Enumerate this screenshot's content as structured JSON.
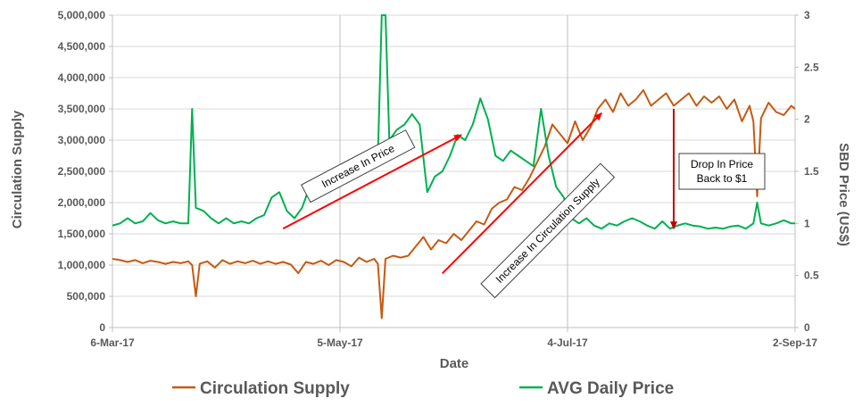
{
  "chart_data": {
    "type": "line",
    "xlabel": "Date",
    "ylabel_left": "Circulation Supply",
    "ylabel_right": "SBD Price (US$)",
    "ylim_left": [
      0,
      5000000
    ],
    "ylim_right": [
      0,
      3
    ],
    "yticks_left": [
      "0",
      "500,000",
      "1,000,000",
      "1,500,000",
      "2,000,000",
      "2,500,000",
      "3,000,000",
      "3,500,000",
      "4,000,000",
      "4,500,000",
      "5,000,000"
    ],
    "yticks_right": [
      "0",
      "0.5",
      "1",
      "1.5",
      "2",
      "2.5",
      "3"
    ],
    "xlim": [
      "2017-03-06",
      "2017-09-02"
    ],
    "xticks": [
      {
        "date": "2017-03-06",
        "label": "6-Mar-17"
      },
      {
        "date": "2017-05-05",
        "label": "5-May-17"
      },
      {
        "date": "2017-07-04",
        "label": "4-Jul-17"
      },
      {
        "date": "2017-09-02",
        "label": "2-Sep-17"
      }
    ],
    "grid": "horizontal",
    "legend": "bottom",
    "series": [
      {
        "name": "Circulation Supply",
        "axis": "left",
        "color": "#c55a11",
        "points": [
          [
            "2017-03-06",
            1100000
          ],
          [
            "2017-03-08",
            1080000
          ],
          [
            "2017-03-10",
            1050000
          ],
          [
            "2017-03-12",
            1080000
          ],
          [
            "2017-03-14",
            1030000
          ],
          [
            "2017-03-16",
            1070000
          ],
          [
            "2017-03-18",
            1050000
          ],
          [
            "2017-03-20",
            1020000
          ],
          [
            "2017-03-22",
            1050000
          ],
          [
            "2017-03-24",
            1030000
          ],
          [
            "2017-03-26",
            1060000
          ],
          [
            "2017-03-27",
            1000000
          ],
          [
            "2017-03-28",
            500000
          ],
          [
            "2017-03-29",
            1020000
          ],
          [
            "2017-03-31",
            1060000
          ],
          [
            "2017-04-02",
            960000
          ],
          [
            "2017-04-04",
            1080000
          ],
          [
            "2017-04-06",
            1020000
          ],
          [
            "2017-04-08",
            1060000
          ],
          [
            "2017-04-10",
            1030000
          ],
          [
            "2017-04-12",
            1070000
          ],
          [
            "2017-04-14",
            1020000
          ],
          [
            "2017-04-16",
            1060000
          ],
          [
            "2017-04-18",
            1020000
          ],
          [
            "2017-04-20",
            1050000
          ],
          [
            "2017-04-22",
            1010000
          ],
          [
            "2017-04-24",
            870000
          ],
          [
            "2017-04-26",
            1050000
          ],
          [
            "2017-04-28",
            1020000
          ],
          [
            "2017-04-30",
            1070000
          ],
          [
            "2017-05-02",
            1000000
          ],
          [
            "2017-05-04",
            1080000
          ],
          [
            "2017-05-06",
            1050000
          ],
          [
            "2017-05-08",
            980000
          ],
          [
            "2017-05-10",
            1120000
          ],
          [
            "2017-05-12",
            1050000
          ],
          [
            "2017-05-14",
            1100000
          ],
          [
            "2017-05-15",
            1020000
          ],
          [
            "2017-05-16",
            150000
          ],
          [
            "2017-05-17",
            1100000
          ],
          [
            "2017-05-19",
            1150000
          ],
          [
            "2017-05-21",
            1120000
          ],
          [
            "2017-05-23",
            1150000
          ],
          [
            "2017-05-25",
            1300000
          ],
          [
            "2017-05-27",
            1450000
          ],
          [
            "2017-05-29",
            1250000
          ],
          [
            "2017-05-31",
            1400000
          ],
          [
            "2017-06-02",
            1350000
          ],
          [
            "2017-06-04",
            1500000
          ],
          [
            "2017-06-06",
            1400000
          ],
          [
            "2017-06-08",
            1550000
          ],
          [
            "2017-06-10",
            1700000
          ],
          [
            "2017-06-12",
            1650000
          ],
          [
            "2017-06-14",
            1900000
          ],
          [
            "2017-06-16",
            2000000
          ],
          [
            "2017-06-18",
            2050000
          ],
          [
            "2017-06-20",
            2250000
          ],
          [
            "2017-06-22",
            2200000
          ],
          [
            "2017-06-24",
            2400000
          ],
          [
            "2017-06-26",
            2650000
          ],
          [
            "2017-06-28",
            2900000
          ],
          [
            "2017-06-30",
            3250000
          ],
          [
            "2017-07-02",
            3100000
          ],
          [
            "2017-07-04",
            2950000
          ],
          [
            "2017-07-06",
            3300000
          ],
          [
            "2017-07-08",
            3000000
          ],
          [
            "2017-07-10",
            3200000
          ],
          [
            "2017-07-12",
            3500000
          ],
          [
            "2017-07-14",
            3650000
          ],
          [
            "2017-07-16",
            3450000
          ],
          [
            "2017-07-18",
            3750000
          ],
          [
            "2017-07-20",
            3550000
          ],
          [
            "2017-07-22",
            3650000
          ],
          [
            "2017-07-24",
            3800000
          ],
          [
            "2017-07-26",
            3550000
          ],
          [
            "2017-07-28",
            3650000
          ],
          [
            "2017-07-30",
            3750000
          ],
          [
            "2017-08-01",
            3550000
          ],
          [
            "2017-08-03",
            3650000
          ],
          [
            "2017-08-05",
            3750000
          ],
          [
            "2017-08-07",
            3550000
          ],
          [
            "2017-08-09",
            3700000
          ],
          [
            "2017-08-11",
            3600000
          ],
          [
            "2017-08-13",
            3700000
          ],
          [
            "2017-08-15",
            3500000
          ],
          [
            "2017-08-17",
            3650000
          ],
          [
            "2017-08-19",
            3300000
          ],
          [
            "2017-08-21",
            3550000
          ],
          [
            "2017-08-22",
            3300000
          ],
          [
            "2017-08-23",
            2100000
          ],
          [
            "2017-08-24",
            3350000
          ],
          [
            "2017-08-26",
            3600000
          ],
          [
            "2017-08-28",
            3450000
          ],
          [
            "2017-08-30",
            3400000
          ],
          [
            "2017-09-01",
            3550000
          ],
          [
            "2017-09-02",
            3500000
          ]
        ]
      },
      {
        "name": "AVG Daily Price",
        "axis": "right",
        "color": "#00b050",
        "points": [
          [
            "2017-03-06",
            0.98
          ],
          [
            "2017-03-08",
            1.0
          ],
          [
            "2017-03-10",
            1.05
          ],
          [
            "2017-03-12",
            1.0
          ],
          [
            "2017-03-14",
            1.02
          ],
          [
            "2017-03-16",
            1.1
          ],
          [
            "2017-03-18",
            1.03
          ],
          [
            "2017-03-20",
            1.0
          ],
          [
            "2017-03-22",
            1.02
          ],
          [
            "2017-03-24",
            1.0
          ],
          [
            "2017-03-26",
            1.0
          ],
          [
            "2017-03-27",
            2.1
          ],
          [
            "2017-03-28",
            1.15
          ],
          [
            "2017-03-30",
            1.12
          ],
          [
            "2017-04-01",
            1.05
          ],
          [
            "2017-04-03",
            1.0
          ],
          [
            "2017-04-05",
            1.05
          ],
          [
            "2017-04-07",
            1.0
          ],
          [
            "2017-04-09",
            1.02
          ],
          [
            "2017-04-11",
            1.0
          ],
          [
            "2017-04-13",
            1.05
          ],
          [
            "2017-04-15",
            1.08
          ],
          [
            "2017-04-17",
            1.25
          ],
          [
            "2017-04-19",
            1.3
          ],
          [
            "2017-04-21",
            1.12
          ],
          [
            "2017-04-23",
            1.05
          ],
          [
            "2017-04-25",
            1.15
          ],
          [
            "2017-04-27",
            1.35
          ],
          [
            "2017-04-29",
            1.4
          ],
          [
            "2017-05-01",
            1.45
          ],
          [
            "2017-05-03",
            1.35
          ],
          [
            "2017-05-05",
            1.5
          ],
          [
            "2017-05-07",
            1.45
          ],
          [
            "2017-05-09",
            1.6
          ],
          [
            "2017-05-11",
            1.65
          ],
          [
            "2017-05-13",
            1.7
          ],
          [
            "2017-05-15",
            1.65
          ],
          [
            "2017-05-16",
            3.0
          ],
          [
            "2017-05-17",
            3.0
          ],
          [
            "2017-05-18",
            1.8
          ],
          [
            "2017-05-20",
            1.9
          ],
          [
            "2017-05-22",
            1.95
          ],
          [
            "2017-05-24",
            2.05
          ],
          [
            "2017-05-26",
            1.95
          ],
          [
            "2017-05-28",
            1.3
          ],
          [
            "2017-05-30",
            1.45
          ],
          [
            "2017-06-01",
            1.5
          ],
          [
            "2017-06-03",
            1.65
          ],
          [
            "2017-06-05",
            1.85
          ],
          [
            "2017-06-07",
            1.8
          ],
          [
            "2017-06-09",
            1.95
          ],
          [
            "2017-06-11",
            2.2
          ],
          [
            "2017-06-13",
            2.0
          ],
          [
            "2017-06-15",
            1.65
          ],
          [
            "2017-06-17",
            1.6
          ],
          [
            "2017-06-19",
            1.7
          ],
          [
            "2017-06-21",
            1.65
          ],
          [
            "2017-06-23",
            1.6
          ],
          [
            "2017-06-25",
            1.55
          ],
          [
            "2017-06-27",
            2.1
          ],
          [
            "2017-06-29",
            1.65
          ],
          [
            "2017-07-01",
            1.35
          ],
          [
            "2017-07-03",
            1.25
          ],
          [
            "2017-07-05",
            1.05
          ],
          [
            "2017-07-07",
            1.0
          ],
          [
            "2017-07-09",
            1.05
          ],
          [
            "2017-07-11",
            0.98
          ],
          [
            "2017-07-13",
            0.95
          ],
          [
            "2017-07-15",
            1.0
          ],
          [
            "2017-07-17",
            0.98
          ],
          [
            "2017-07-19",
            1.02
          ],
          [
            "2017-07-21",
            1.05
          ],
          [
            "2017-07-23",
            1.02
          ],
          [
            "2017-07-25",
            0.98
          ],
          [
            "2017-07-27",
            0.95
          ],
          [
            "2017-07-29",
            1.02
          ],
          [
            "2017-07-31",
            0.95
          ],
          [
            "2017-08-02",
            0.98
          ],
          [
            "2017-08-04",
            1.0
          ],
          [
            "2017-08-06",
            0.98
          ],
          [
            "2017-08-08",
            0.97
          ],
          [
            "2017-08-10",
            0.95
          ],
          [
            "2017-08-12",
            0.96
          ],
          [
            "2017-08-14",
            0.95
          ],
          [
            "2017-08-16",
            0.97
          ],
          [
            "2017-08-18",
            0.98
          ],
          [
            "2017-08-20",
            0.95
          ],
          [
            "2017-08-22",
            1.0
          ],
          [
            "2017-08-23",
            1.2
          ],
          [
            "2017-08-24",
            1.0
          ],
          [
            "2017-08-26",
            0.98
          ],
          [
            "2017-08-28",
            1.0
          ],
          [
            "2017-08-30",
            1.03
          ],
          [
            "2017-09-01",
            1.0
          ],
          [
            "2017-09-02",
            1.0
          ]
        ]
      }
    ],
    "annotations": {
      "price_arrow": {
        "label": "Increase In Price",
        "color": "#ff0000",
        "from": [
          "2017-04-20",
          0.95
        ],
        "to": [
          "2017-06-06",
          1.85
        ]
      },
      "supply_arrow": {
        "label": "Increase In Circulation Supply",
        "color": "#ff0000",
        "from": [
          "2017-06-01",
          0.52
        ],
        "to": [
          "2017-07-13",
          2.06
        ]
      },
      "drop_arrow": {
        "label_line1": "Drop In Price",
        "label_line2": "Back to $1",
        "color": "#c00000",
        "x": "2017-08-01",
        "from_value": 2.1,
        "to_value": 0.95
      }
    }
  }
}
